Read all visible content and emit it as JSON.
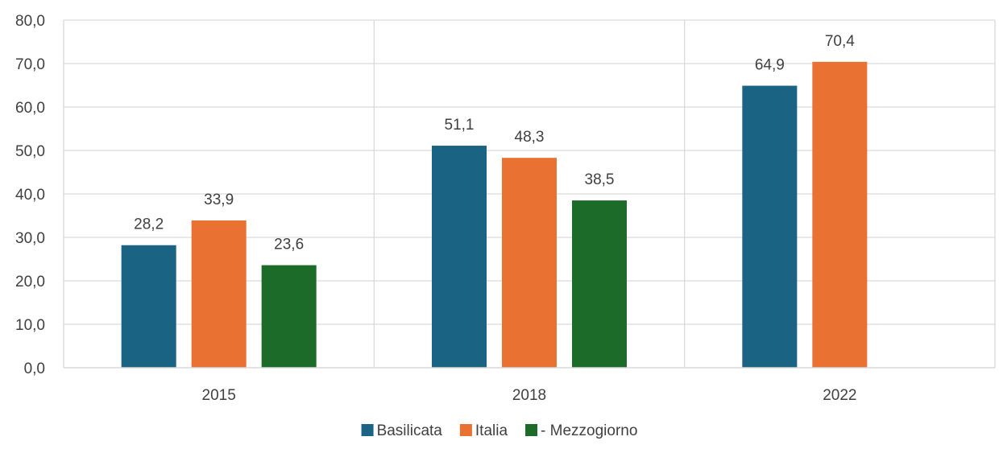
{
  "chart_data": {
    "type": "bar",
    "categories": [
      "2015",
      "2018",
      "2022"
    ],
    "series": [
      {
        "name": "Basilicata",
        "values": [
          28.2,
          51.1,
          64.9
        ],
        "labels": [
          "28,2",
          "51,1",
          "64,9"
        ],
        "color": "#1b6382"
      },
      {
        "name": "Italia",
        "values": [
          33.9,
          48.3,
          70.4
        ],
        "labels": [
          "33,9",
          "48,3",
          "70,4"
        ],
        "color": "#e97132"
      },
      {
        "name": "- Mezzogiorno",
        "values": [
          23.6,
          38.5,
          null
        ],
        "labels": [
          "23,6",
          "38,5",
          null
        ],
        "color": "#1c6b28"
      }
    ],
    "ylim": [
      0,
      80
    ],
    "yticks": [
      0,
      10,
      20,
      30,
      40,
      50,
      60,
      70,
      80
    ],
    "ytick_labels": [
      "0,0",
      "10,0",
      "20,0",
      "30,0",
      "40,0",
      "50,0",
      "60,0",
      "70,0",
      "80,0"
    ],
    "title": "",
    "xlabel": "",
    "ylabel": "",
    "grid": true,
    "legend_position": "bottom"
  }
}
